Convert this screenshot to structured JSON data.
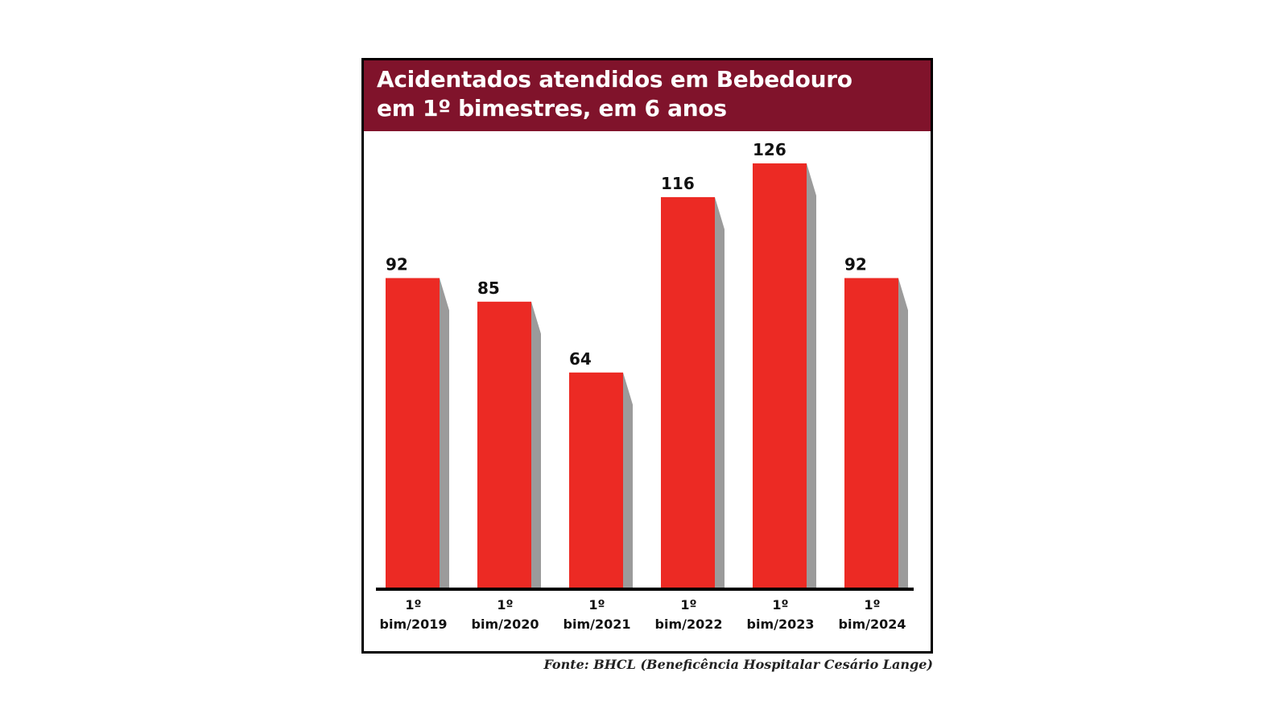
{
  "chart_data": {
    "type": "bar",
    "title_line1": "Acidentados atendidos em Bebedouro",
    "title_line2": "em 1º bimestres, em 6 anos",
    "categories": [
      [
        "1º",
        "bim/2019"
      ],
      [
        "1º",
        "bim/2020"
      ],
      [
        "1º",
        "bim/2021"
      ],
      [
        "1º",
        "bim/2022"
      ],
      [
        "1º",
        "bim/2023"
      ],
      [
        "1º",
        "bim/2024"
      ]
    ],
    "values": [
      92,
      85,
      64,
      116,
      126,
      92
    ],
    "xlabel": "",
    "ylabel": "",
    "ylim": [
      0,
      126
    ],
    "grid": false,
    "legend": "none",
    "bar_color": "#ec2a24",
    "shadow_color": "#9b9b9b",
    "title_band_color": "#80132b",
    "source": "Fonte: BHCL (Beneficência Hospitalar Cesário Lange)"
  }
}
